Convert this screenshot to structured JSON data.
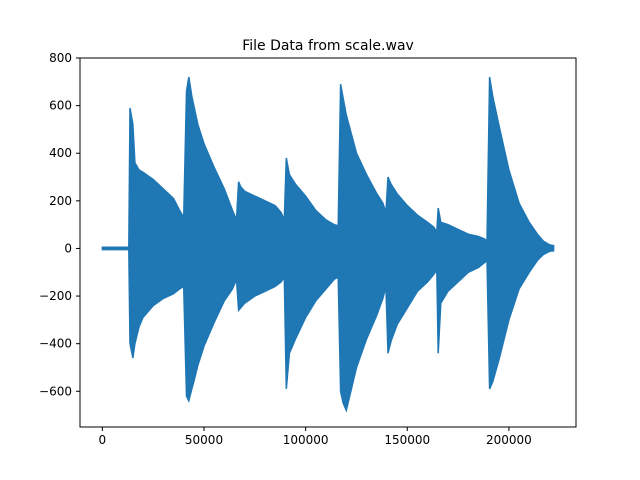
{
  "chart_data": {
    "type": "line",
    "title": "File Data from scale.wav",
    "xlabel": "",
    "ylabel": "",
    "xlim": [
      -11000,
      233000
    ],
    "ylim": [
      -750,
      800
    ],
    "x_ticks": [
      0,
      50000,
      100000,
      150000,
      200000
    ],
    "x_tick_labels": [
      "0",
      "50000",
      "100000",
      "150000",
      "200000"
    ],
    "y_ticks": [
      -600,
      -400,
      -200,
      0,
      200,
      400,
      600,
      800
    ],
    "y_tick_labels": [
      "−600",
      "−400",
      "−200",
      "0",
      "200",
      "400",
      "600",
      "800"
    ],
    "grid": false,
    "legend": false,
    "series_color": "#1f77b4",
    "series": [
      {
        "x": [
          0,
          13000,
          13600,
          15000,
          16000,
          18000,
          20000,
          25000,
          30000,
          35000,
          38000,
          40000,
          41400,
          42500,
          44000,
          45000,
          47000,
          50000,
          55000,
          60000,
          64000,
          66000,
          67000,
          68000,
          70000,
          75000,
          80000,
          85000,
          88000,
          89500,
          90500,
          92000,
          95000,
          100000,
          105000,
          110000,
          114000,
          116000,
          117200,
          118500,
          120000,
          125000,
          130000,
          135000,
          138000,
          139500,
          140500,
          142000,
          145000,
          150000,
          155000,
          160000,
          163000,
          164500,
          165200,
          166500,
          170000,
          175000,
          180000,
          185000,
          188000,
          189200,
          190500,
          192000,
          195000,
          200000,
          205000,
          210000,
          214000,
          217000,
          220000,
          222000
        ],
        "upper": [
          5,
          5,
          590,
          520,
          360,
          330,
          320,
          290,
          250,
          210,
          160,
          130,
          660,
          720,
          640,
          600,
          520,
          440,
          340,
          250,
          160,
          120,
          280,
          260,
          240,
          220,
          200,
          180,
          150,
          120,
          380,
          310,
          270,
          220,
          160,
          120,
          100,
          95,
          690,
          630,
          560,
          400,
          310,
          230,
          190,
          150,
          300,
          270,
          230,
          180,
          140,
          110,
          90,
          70,
          170,
          110,
          100,
          80,
          60,
          50,
          40,
          30,
          720,
          640,
          520,
          330,
          190,
          110,
          60,
          30,
          15,
          12
        ],
        "lower": [
          -5,
          -5,
          -400,
          -460,
          -400,
          -330,
          -290,
          -240,
          -210,
          -190,
          -170,
          -160,
          -620,
          -640,
          -590,
          -560,
          -490,
          -410,
          -310,
          -220,
          -170,
          -130,
          -260,
          -250,
          -230,
          -200,
          -180,
          -160,
          -140,
          -120,
          -590,
          -440,
          -380,
          -290,
          -220,
          -170,
          -130,
          -120,
          -600,
          -650,
          -680,
          -500,
          -380,
          -280,
          -210,
          -160,
          -440,
          -390,
          -320,
          -250,
          -180,
          -140,
          -110,
          -90,
          -440,
          -230,
          -180,
          -140,
          -100,
          -80,
          -60,
          -50,
          -590,
          -560,
          -470,
          -300,
          -170,
          -100,
          -50,
          -25,
          -12,
          -10
        ]
      }
    ]
  }
}
